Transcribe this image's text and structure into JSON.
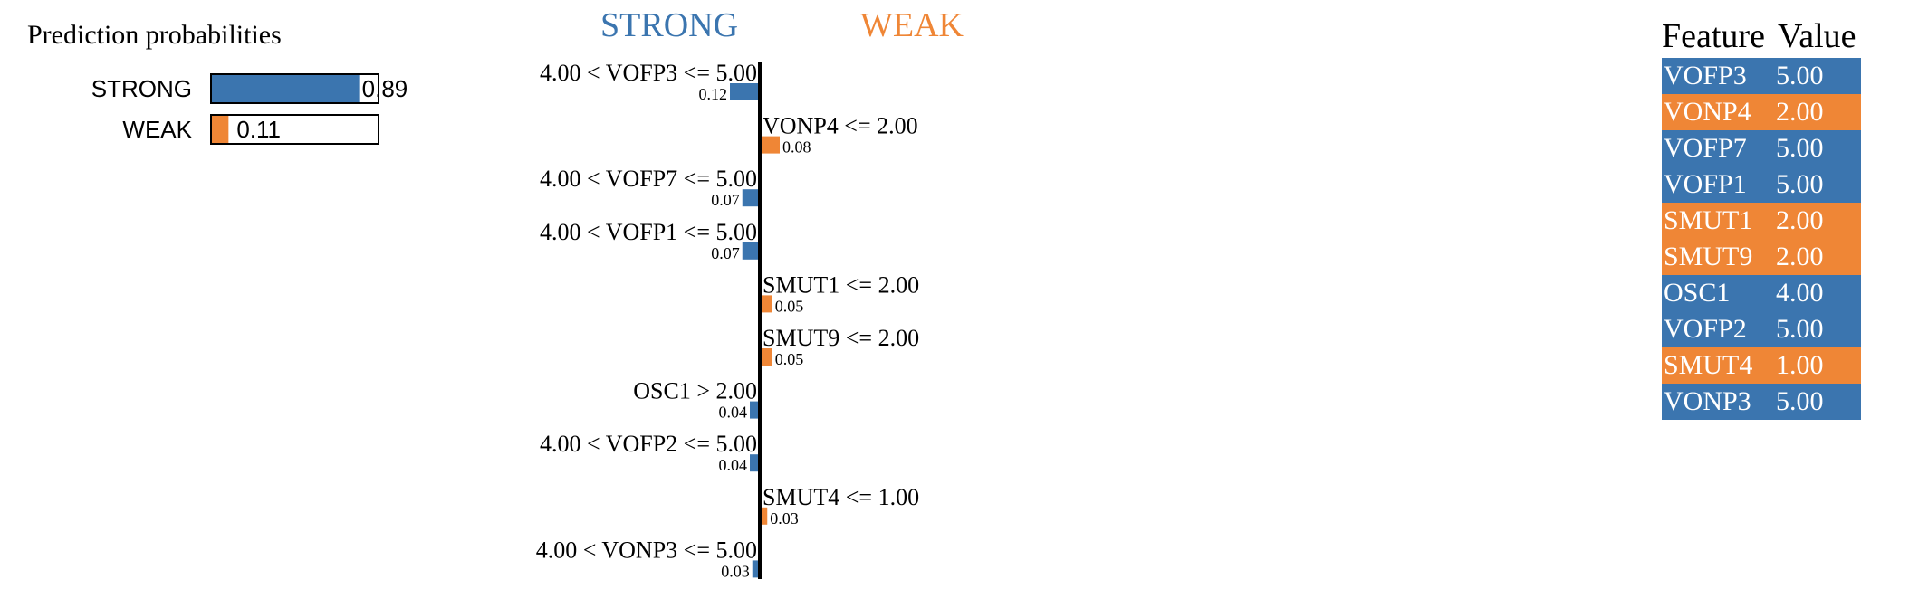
{
  "colors": {
    "strong": "#3b75af",
    "weak": "#ef8636",
    "axis": "#000000",
    "table_text": "#ffffff"
  },
  "chart_data": [
    {
      "type": "bar",
      "title": "Prediction probabilities",
      "orientation": "horizontal",
      "xlim": [
        0,
        1
      ],
      "categories": [
        "STRONG",
        "WEAK"
      ],
      "values": [
        0.89,
        0.11
      ],
      "value_labels": [
        "0.89",
        "0.11"
      ],
      "colors": [
        "#3b75af",
        "#ef8636"
      ]
    },
    {
      "type": "bar",
      "orientation": "horizontal",
      "diverging": true,
      "class_labels": {
        "left": "STRONG",
        "right": "WEAK"
      },
      "xlim": [
        -0.12,
        0.12
      ],
      "features": [
        {
          "label": "4.00 < VOFP3 <= 5.00",
          "value": 0.12,
          "value_label": "0.12",
          "side": "left"
        },
        {
          "label": "VONP4 <= 2.00",
          "value": 0.08,
          "value_label": "0.08",
          "side": "right"
        },
        {
          "label": "4.00 < VOFP7 <= 5.00",
          "value": 0.07,
          "value_label": "0.07",
          "side": "left"
        },
        {
          "label": "4.00 < VOFP1 <= 5.00",
          "value": 0.07,
          "value_label": "0.07",
          "side": "left"
        },
        {
          "label": "SMUT1 <= 2.00",
          "value": 0.05,
          "value_label": "0.05",
          "side": "right"
        },
        {
          "label": "SMUT9 <= 2.00",
          "value": 0.05,
          "value_label": "0.05",
          "side": "right"
        },
        {
          "label": "OSC1 > 2.00",
          "value": 0.04,
          "value_label": "0.04",
          "side": "left"
        },
        {
          "label": "4.00 < VOFP2 <= 5.00",
          "value": 0.04,
          "value_label": "0.04",
          "side": "left"
        },
        {
          "label": "SMUT4 <= 1.00",
          "value": 0.03,
          "value_label": "0.03",
          "side": "right"
        },
        {
          "label": "4.00 < VONP3 <= 5.00",
          "value": 0.03,
          "value_label": "0.03",
          "side": "left"
        }
      ]
    },
    {
      "type": "table",
      "columns": [
        "Feature",
        "Value"
      ],
      "rows": [
        {
          "feature": "VOFP3",
          "value": "5.00",
          "class": "strong"
        },
        {
          "feature": "VONP4",
          "value": "2.00",
          "class": "weak"
        },
        {
          "feature": "VOFP7",
          "value": "5.00",
          "class": "strong"
        },
        {
          "feature": "VOFP1",
          "value": "5.00",
          "class": "strong"
        },
        {
          "feature": "SMUT1",
          "value": "2.00",
          "class": "weak"
        },
        {
          "feature": "SMUT9",
          "value": "2.00",
          "class": "weak"
        },
        {
          "feature": "OSC1",
          "value": "4.00",
          "class": "strong"
        },
        {
          "feature": "VOFP2",
          "value": "5.00",
          "class": "strong"
        },
        {
          "feature": "SMUT4",
          "value": "1.00",
          "class": "weak"
        },
        {
          "feature": "VONP3",
          "value": "5.00",
          "class": "strong"
        }
      ]
    }
  ]
}
